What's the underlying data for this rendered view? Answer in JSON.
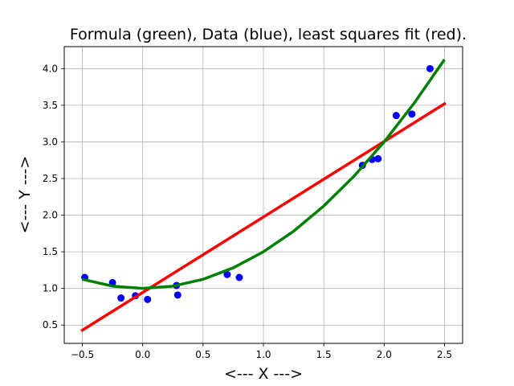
{
  "chart_data": {
    "type": "scatter",
    "title": "Formula (green), Data (blue), least squares fit (red).",
    "xlabel": "<--- X --->",
    "ylabel": "<--- Y --->",
    "xlim": [
      -0.65,
      2.65
    ],
    "ylim": [
      0.25,
      4.3
    ],
    "xticks": [
      -0.5,
      0.0,
      0.5,
      1.0,
      1.5,
      2.0,
      2.5
    ],
    "xtick_labels": [
      "−0.5",
      "0.0",
      "0.5",
      "1.0",
      "1.5",
      "2.0",
      "2.5"
    ],
    "yticks": [
      0.5,
      1.0,
      1.5,
      2.0,
      2.5,
      3.0,
      3.5,
      4.0
    ],
    "ytick_labels": [
      "0.5",
      "1.0",
      "1.5",
      "2.0",
      "2.5",
      "3.0",
      "3.5",
      "4.0"
    ],
    "grid": true,
    "series": [
      {
        "kind": "scatter",
        "color": "#0000ff",
        "x": [
          -0.48,
          -0.25,
          -0.18,
          -0.06,
          0.04,
          0.28,
          0.29,
          0.7,
          0.8,
          1.82,
          1.9,
          1.95,
          2.1,
          2.23,
          2.38
        ],
        "y": [
          1.15,
          1.08,
          0.87,
          0.9,
          0.85,
          1.04,
          0.91,
          1.19,
          1.15,
          2.68,
          2.76,
          2.77,
          3.36,
          3.38,
          4.0
        ]
      },
      {
        "kind": "line",
        "color": "#ff0000",
        "x": [
          -0.5,
          2.5
        ],
        "y": [
          0.43,
          3.52
        ]
      },
      {
        "kind": "curve",
        "color": "#008000",
        "x": [
          -0.5,
          -0.25,
          0.0,
          0.25,
          0.5,
          0.75,
          1.0,
          1.25,
          1.5,
          1.75,
          2.0,
          2.25,
          2.5
        ],
        "y": [
          1.125,
          1.031,
          1.0,
          1.031,
          1.125,
          1.281,
          1.5,
          1.781,
          2.125,
          2.531,
          3.0,
          3.531,
          4.125
        ]
      }
    ]
  }
}
